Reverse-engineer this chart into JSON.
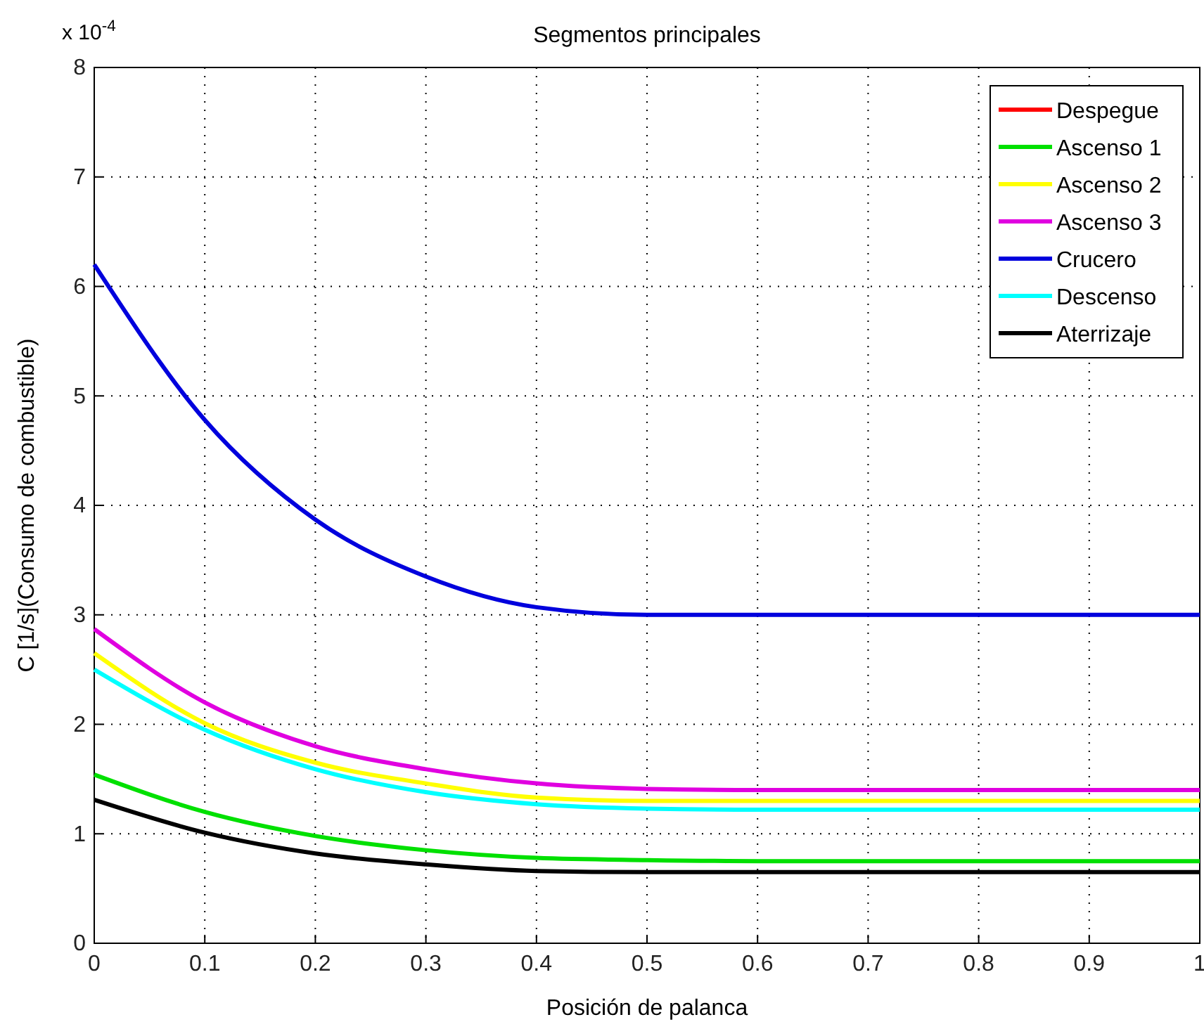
{
  "chart_data": {
    "type": "line",
    "title": "Segmentos principales",
    "xlabel": "Posición de palanca",
    "ylabel": "C [1/s](Consumo de combustible)",
    "annotations": [
      "x 10$^{-4}$"
    ],
    "x": [
      0,
      0.1,
      0.2,
      0.3,
      0.4,
      0.5,
      0.6,
      0.7,
      0.8,
      0.9,
      1
    ],
    "xlim": [
      0,
      1
    ],
    "xticks": [
      0,
      0.1,
      0.2,
      0.3,
      0.4,
      0.5,
      0.6,
      0.7,
      0.8,
      0.9,
      1
    ],
    "ylim": [
      0,
      8
    ],
    "yticks": [
      0,
      1,
      2,
      3,
      4,
      5,
      6,
      7,
      8
    ],
    "grid": true,
    "legend": "top right",
    "line_style": "solid",
    "marker": "none",
    "series": [
      {
        "name": "Despegue",
        "color": "#ff0000",
        "values": [
          null,
          null,
          null,
          null,
          null,
          null,
          null,
          null,
          null,
          null,
          null
        ]
      },
      {
        "name": "Ascenso 1",
        "color": "#00e000",
        "values": [
          1.54,
          1.2,
          0.98,
          0.85,
          0.78,
          0.76,
          0.75,
          0.75,
          0.75,
          0.75,
          0.75
        ]
      },
      {
        "name": "Ascenso 2",
        "color": "#ffff00",
        "values": [
          2.65,
          2.01,
          1.65,
          1.46,
          1.33,
          1.3,
          1.3,
          1.3,
          1.3,
          1.3,
          1.3
        ]
      },
      {
        "name": "Ascenso 3",
        "color": "#e000e0",
        "values": [
          2.87,
          2.2,
          1.8,
          1.59,
          1.46,
          1.41,
          1.4,
          1.4,
          1.4,
          1.4,
          1.4
        ]
      },
      {
        "name": "Crucero",
        "color": "#0000dd",
        "values": [
          6.2,
          4.78,
          3.87,
          3.35,
          3.07,
          3.0,
          3.0,
          3.0,
          3.0,
          3.0,
          3.0
        ]
      },
      {
        "name": "Descenso",
        "color": "#00ffff",
        "values": [
          2.5,
          1.95,
          1.59,
          1.38,
          1.27,
          1.23,
          1.22,
          1.22,
          1.22,
          1.22,
          1.22
        ]
      },
      {
        "name": "Aterrizaje",
        "color": "#000000",
        "values": [
          1.31,
          1.01,
          0.82,
          0.72,
          0.66,
          0.65,
          0.65,
          0.65,
          0.65,
          0.65,
          0.65
        ]
      }
    ]
  }
}
